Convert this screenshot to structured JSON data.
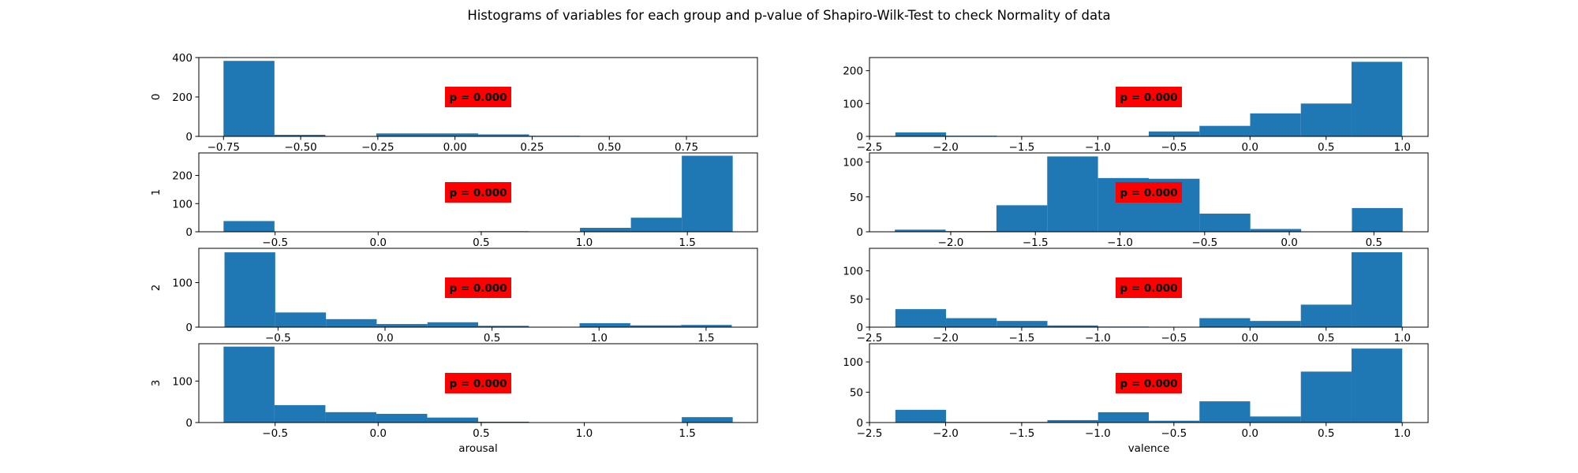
{
  "figure": {
    "title": "Histograms of variables for each group and p-value of Shapiro-Wilk-Test to check Normality of data",
    "bar_color": "#1f77b4",
    "annotation_bg": "#ff0000"
  },
  "chart_data": [
    {
      "type": "bar",
      "column": "arousal",
      "group": "0",
      "ylabel": "0",
      "xlabel": "",
      "p_label": "p = 0.000",
      "bin_range": [
        -0.75,
        0.9
      ],
      "xlim": [
        -0.83,
        0.98
      ],
      "ylim": [
        0,
        400
      ],
      "xticks": [
        -0.75,
        -0.5,
        -0.25,
        0.0,
        0.25,
        0.5,
        0.75
      ],
      "xtick_labels": [
        "−0.75",
        "−0.50",
        "−0.25",
        "0.00",
        "0.25",
        "0.50",
        "0.75"
      ],
      "yticks": [
        0,
        200,
        400
      ],
      "ytick_labels": [
        "0",
        "200",
        "400"
      ],
      "values": [
        383,
        8,
        2,
        15,
        15,
        10,
        3,
        2,
        0,
        0
      ]
    },
    {
      "type": "bar",
      "column": "valence",
      "group": "0",
      "ylabel": "",
      "xlabel": "",
      "p_label": "p = 0.000",
      "bin_range": [
        -2.33,
        1.0
      ],
      "xlim": [
        -2.5,
        1.17
      ],
      "ylim": [
        0,
        240
      ],
      "xticks": [
        -2.5,
        -2.0,
        -1.5,
        -1.0,
        -0.5,
        0.0,
        0.5,
        1.0
      ],
      "xtick_labels": [
        "−2.5",
        "−2.0",
        "−1.5",
        "−1.0",
        "−0.5",
        "0.0",
        "0.5",
        "1.0"
      ],
      "yticks": [
        0,
        100,
        200
      ],
      "ytick_labels": [
        "0",
        "100",
        "200"
      ],
      "values": [
        12,
        2,
        0,
        0,
        0,
        15,
        32,
        70,
        100,
        227
      ]
    },
    {
      "type": "bar",
      "column": "arousal",
      "group": "1",
      "ylabel": "1",
      "xlabel": "",
      "p_label": "p = 0.000",
      "bin_range": [
        -0.75,
        1.72
      ],
      "xlim": [
        -0.87,
        1.84
      ],
      "ylim": [
        0,
        280
      ],
      "xticks": [
        -0.5,
        0.0,
        0.5,
        1.0,
        1.5
      ],
      "xtick_labels": [
        "−0.5",
        "0.0",
        "0.5",
        "1.0",
        "1.5"
      ],
      "yticks": [
        0,
        100,
        200
      ],
      "ytick_labels": [
        "0",
        "100",
        "200"
      ],
      "values": [
        38,
        0,
        0,
        0,
        0,
        2,
        0,
        14,
        50,
        270
      ]
    },
    {
      "type": "bar",
      "column": "valence",
      "group": "1",
      "ylabel": "",
      "xlabel": "",
      "p_label": "p = 0.000",
      "bin_range": [
        -2.33,
        0.67
      ],
      "xlim": [
        -2.48,
        0.82
      ],
      "ylim": [
        0,
        113
      ],
      "xticks": [
        -2.0,
        -1.5,
        -1.0,
        -0.5,
        0.0,
        0.5
      ],
      "xtick_labels": [
        "−2.0",
        "−1.5",
        "−1.0",
        "−0.5",
        "0.0",
        "0.5"
      ],
      "yticks": [
        0,
        50,
        100
      ],
      "ytick_labels": [
        "0",
        "50",
        "100"
      ],
      "values": [
        3,
        1,
        38,
        108,
        77,
        76,
        26,
        4,
        0,
        34
      ]
    },
    {
      "type": "bar",
      "column": "arousal",
      "group": "2",
      "ylabel": "2",
      "xlabel": "",
      "p_label": "p = 0.000",
      "bin_range": [
        -0.75,
        1.62
      ],
      "xlim": [
        -0.87,
        1.74
      ],
      "ylim": [
        0,
        177
      ],
      "xticks": [
        -0.5,
        0.0,
        0.5,
        1.0,
        1.5
      ],
      "xtick_labels": [
        "−0.5",
        "0.0",
        "0.5",
        "1.0",
        "1.5"
      ],
      "yticks": [
        0,
        100
      ],
      "ytick_labels": [
        "0",
        "100"
      ],
      "values": [
        168,
        33,
        18,
        7,
        11,
        3,
        0,
        9,
        4,
        5
      ]
    },
    {
      "type": "bar",
      "column": "valence",
      "group": "2",
      "ylabel": "",
      "xlabel": "",
      "p_label": "p = 0.000",
      "bin_range": [
        -2.33,
        1.0
      ],
      "xlim": [
        -2.5,
        1.17
      ],
      "ylim": [
        0,
        140
      ],
      "xticks": [
        -2.5,
        -2.0,
        -1.5,
        -1.0,
        -0.5,
        0.0,
        0.5,
        1.0
      ],
      "xtick_labels": [
        "−2.5",
        "−2.0",
        "−1.5",
        "−1.0",
        "−0.5",
        "0.0",
        "0.5",
        "1.0"
      ],
      "yticks": [
        0,
        50,
        100
      ],
      "ytick_labels": [
        "0",
        "50",
        "100"
      ],
      "values": [
        32,
        16,
        11,
        3,
        1,
        0,
        16,
        11,
        40,
        133
      ]
    },
    {
      "type": "bar",
      "column": "arousal",
      "group": "3",
      "ylabel": "3",
      "xlabel": "arousal",
      "p_label": "p = 0.000",
      "bin_range": [
        -0.75,
        1.72
      ],
      "xlim": [
        -0.87,
        1.84
      ],
      "ylim": [
        0,
        190
      ],
      "xticks": [
        -0.5,
        0.0,
        0.5,
        1.0,
        1.5
      ],
      "xtick_labels": [
        "−0.5",
        "0.0",
        "0.5",
        "1.0",
        "1.5"
      ],
      "yticks": [
        0,
        100
      ],
      "ytick_labels": [
        "0",
        "100"
      ],
      "values": [
        183,
        42,
        25,
        21,
        12,
        2,
        0,
        0,
        0,
        13
      ]
    },
    {
      "type": "bar",
      "column": "valence",
      "group": "3",
      "ylabel": "",
      "xlabel": "valence",
      "p_label": "p = 0.000",
      "bin_range": [
        -2.33,
        1.0
      ],
      "xlim": [
        -2.5,
        1.17
      ],
      "ylim": [
        0,
        130
      ],
      "xticks": [
        -2.5,
        -2.0,
        -1.5,
        -1.0,
        -0.5,
        0.0,
        0.5,
        1.0
      ],
      "xtick_labels": [
        "−2.5",
        "−2.0",
        "−1.5",
        "−1.0",
        "−0.5",
        "0.0",
        "0.5",
        "1.0"
      ],
      "yticks": [
        0,
        50,
        100
      ],
      "ytick_labels": [
        "0",
        "50",
        "100"
      ],
      "values": [
        21,
        1,
        1,
        4,
        17,
        3,
        35,
        10,
        84,
        122
      ]
    }
  ]
}
